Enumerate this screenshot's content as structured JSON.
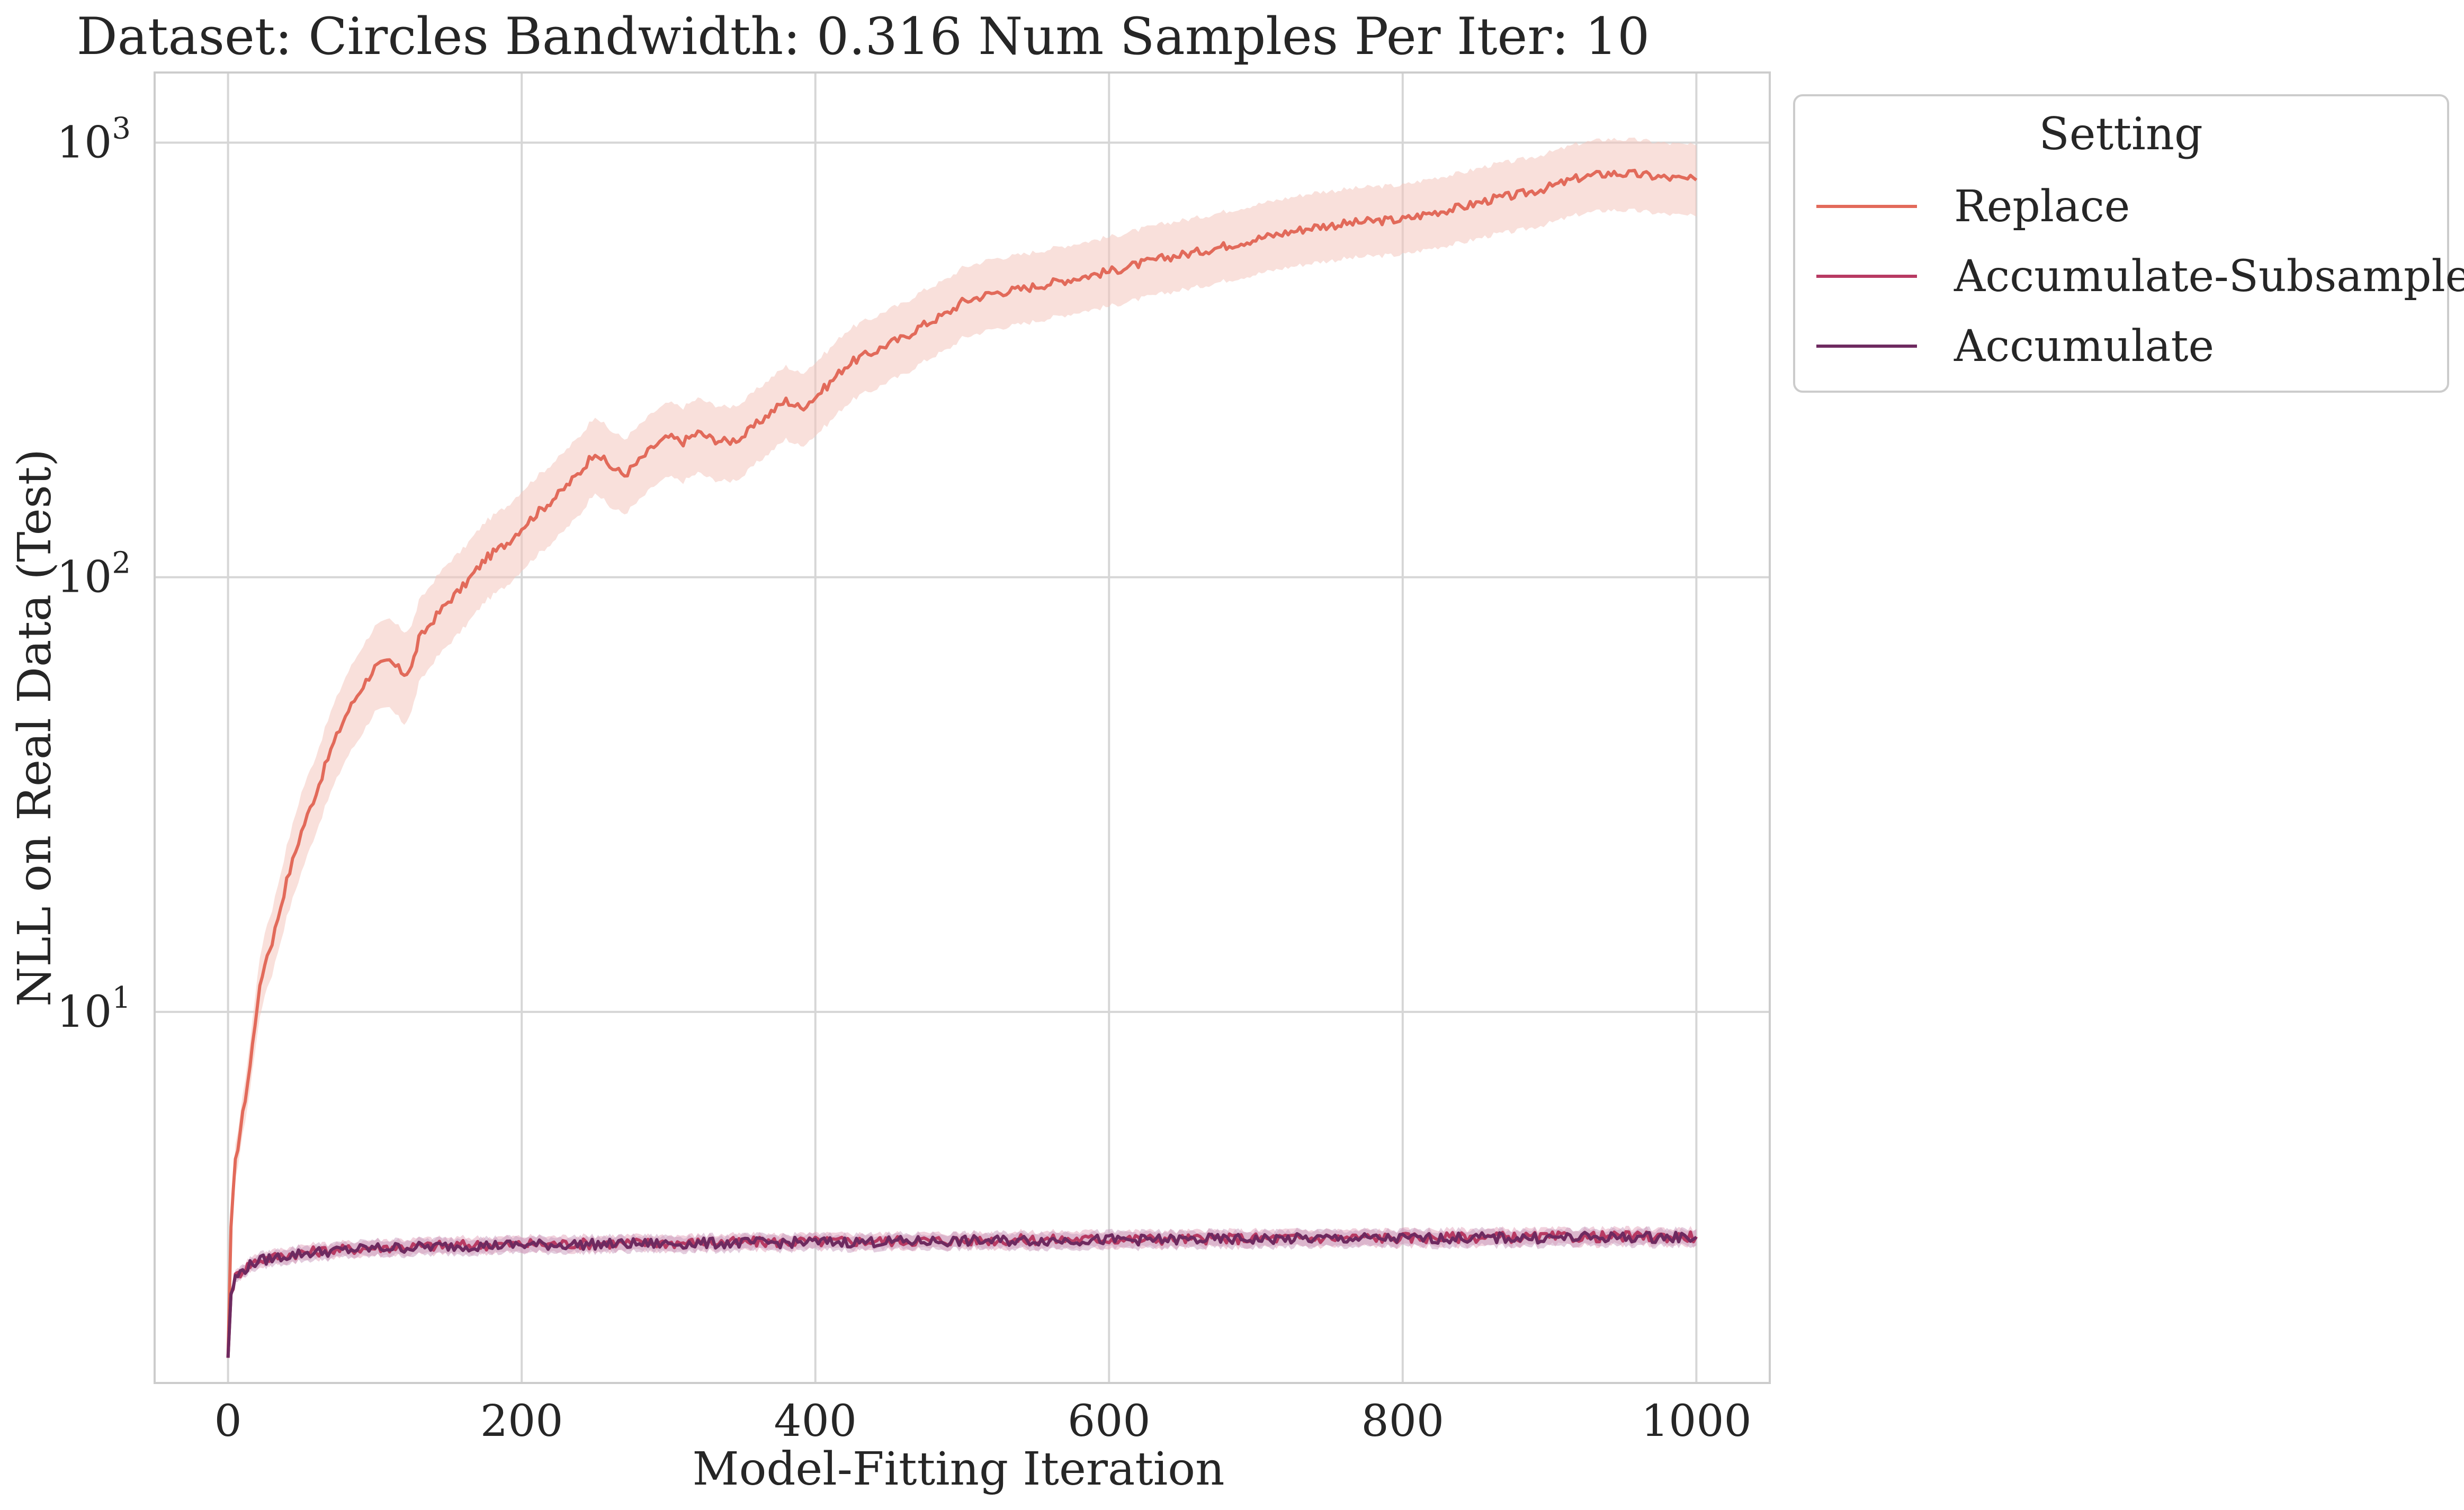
{
  "chart_data": {
    "type": "line",
    "title": "Dataset: Circles Bandwidth: 0.316 Num Samples Per Iter: 10",
    "xlabel": "Model-Fitting Iteration",
    "ylabel": "NLL on Real Data (Test)",
    "x_scale": "linear",
    "y_scale": "log",
    "xlim": [
      -50,
      1050
    ],
    "ylim": [
      1.4,
      1450
    ],
    "grid": true,
    "x_ticks": [
      {
        "value": 0,
        "label": "0"
      },
      {
        "value": 200,
        "label": "200"
      },
      {
        "value": 400,
        "label": "400"
      },
      {
        "value": 600,
        "label": "600"
      },
      {
        "value": 800,
        "label": "800"
      },
      {
        "value": 1000,
        "label": "1000"
      }
    ],
    "y_ticks": [
      {
        "value": 10,
        "base": "10",
        "exp": "1"
      },
      {
        "value": 100,
        "base": "10",
        "exp": "2"
      },
      {
        "value": 1000,
        "base": "10",
        "exp": "3"
      }
    ],
    "legend": {
      "title": "Setting",
      "placement": "outside-upper-right"
    },
    "series": [
      {
        "name": "Replace",
        "color": "#e26a5a",
        "band_color": "#f4c6bd",
        "x": [
          0,
          2,
          5,
          10,
          15,
          20,
          25,
          30,
          40,
          50,
          60,
          70,
          80,
          90,
          100,
          110,
          120,
          125,
          130,
          140,
          150,
          160,
          175,
          190,
          200,
          210,
          225,
          240,
          250,
          260,
          270,
          280,
          290,
          300,
          310,
          320,
          330,
          340,
          350,
          360,
          370,
          380,
          390,
          400,
          410,
          420,
          430,
          440,
          450,
          460,
          470,
          480,
          490,
          500,
          520,
          540,
          560,
          580,
          600,
          620,
          640,
          660,
          680,
          700,
          720,
          740,
          760,
          780,
          800,
          820,
          840,
          860,
          880,
          900,
          920,
          940,
          960,
          980,
          1000
        ],
        "mean": [
          1.6,
          3.2,
          4.5,
          5.8,
          7.5,
          10.5,
          13.0,
          14.5,
          20.0,
          26.0,
          32.0,
          40.0,
          48.0,
          55.0,
          62.0,
          64.0,
          60.0,
          62.0,
          72.0,
          80.0,
          88.0,
          95.0,
          110.0,
          120.0,
          130.0,
          140.0,
          155.0,
          175.0,
          195.0,
          180.0,
          172.0,
          185.0,
          200.0,
          210.0,
          205.0,
          215.0,
          208.0,
          205.0,
          210.0,
          225.0,
          240.0,
          255.0,
          245.0,
          260.0,
          280.0,
          305.0,
          320.0,
          330.0,
          345.0,
          355.0,
          375.0,
          390.0,
          405.0,
          430.0,
          450.0,
          460.0,
          475.0,
          490.0,
          505.0,
          525.0,
          545.0,
          560.0,
          580.0,
          600.0,
          620.0,
          640.0,
          650.0,
          660.0,
          665.0,
          690.0,
          710.0,
          740.0,
          760.0,
          790.0,
          830.0,
          850.0,
          845.0,
          830.0,
          820.0
        ],
        "lower": [
          1.6,
          3.0,
          4.1,
          5.2,
          6.6,
          9.0,
          11.0,
          12.2,
          16.5,
          21.0,
          26.0,
          32.0,
          38.0,
          43.0,
          49.0,
          50.0,
          46.0,
          49.0,
          57.0,
          64.0,
          70.0,
          76.0,
          88.0,
          96.0,
          104.0,
          112.0,
          124.0,
          140.0,
          158.0,
          145.0,
          140.0,
          150.0,
          162.0,
          170.0,
          166.0,
          174.0,
          168.0,
          166.0,
          170.0,
          183.0,
          195.0,
          208.0,
          200.0,
          212.0,
          228.0,
          248.0,
          262.0,
          270.0,
          283.0,
          292.0,
          308.0,
          322.0,
          334.0,
          355.0,
          372.0,
          382.0,
          395.0,
          408.0,
          420.0,
          436.0,
          452.0,
          465.0,
          482.0,
          498.0,
          515.0,
          530.0,
          540.0,
          548.0,
          552.0,
          572.0,
          588.0,
          612.0,
          628.0,
          652.0,
          684.0,
          700.0,
          696.0,
          684.0,
          676.0
        ],
        "upper": [
          1.6,
          3.4,
          4.9,
          6.4,
          8.5,
          12.2,
          15.3,
          17.2,
          24.0,
          32.0,
          39.0,
          49.0,
          59.0,
          68.0,
          77.0,
          80.0,
          75.0,
          77.0,
          88.0,
          98.0,
          108.0,
          116.0,
          134.0,
          146.0,
          158.0,
          170.0,
          188.0,
          212.0,
          236.0,
          218.0,
          208.0,
          223.0,
          240.0,
          252.0,
          246.0,
          258.0,
          250.0,
          246.0,
          252.0,
          270.0,
          288.0,
          306.0,
          294.0,
          312.0,
          336.0,
          366.0,
          384.0,
          396.0,
          414.0,
          426.0,
          450.0,
          468.0,
          486.0,
          515.0,
          540.0,
          552.0,
          570.0,
          588.0,
          606.0,
          630.0,
          654.0,
          672.0,
          696.0,
          720.0,
          744.0,
          768.0,
          780.0,
          792.0,
          798.0,
          828.0,
          852.0,
          888.0,
          912.0,
          948.0,
          996.0,
          1020.0,
          1014.0,
          996.0,
          984.0
        ]
      },
      {
        "name": "Accumulate-Subsample",
        "color": "#b83a63",
        "band_color": "#e3a3bc",
        "x": [
          0,
          2,
          5,
          10,
          15,
          20,
          30,
          40,
          50,
          60,
          80,
          100,
          120,
          150,
          200,
          250,
          300,
          350,
          400,
          450,
          500,
          550,
          600,
          650,
          700,
          750,
          800,
          850,
          900,
          950,
          1000
        ],
        "mean": [
          1.6,
          2.25,
          2.45,
          2.55,
          2.62,
          2.68,
          2.72,
          2.76,
          2.79,
          2.81,
          2.84,
          2.87,
          2.88,
          2.9,
          2.92,
          2.93,
          2.94,
          2.95,
          2.96,
          2.97,
          2.98,
          2.99,
          3.0,
          3.0,
          3.01,
          3.02,
          3.02,
          3.03,
          3.03,
          3.04,
          3.04
        ],
        "lower": [
          1.6,
          2.18,
          2.38,
          2.47,
          2.53,
          2.58,
          2.62,
          2.65,
          2.68,
          2.7,
          2.73,
          2.75,
          2.76,
          2.78,
          2.8,
          2.81,
          2.82,
          2.83,
          2.84,
          2.85,
          2.86,
          2.86,
          2.87,
          2.87,
          2.88,
          2.89,
          2.89,
          2.9,
          2.9,
          2.91,
          2.91
        ],
        "upper": [
          1.6,
          2.32,
          2.52,
          2.63,
          2.71,
          2.78,
          2.82,
          2.87,
          2.9,
          2.92,
          2.95,
          2.99,
          3.0,
          3.02,
          3.04,
          3.05,
          3.06,
          3.07,
          3.08,
          3.09,
          3.1,
          3.12,
          3.13,
          3.13,
          3.14,
          3.15,
          3.15,
          3.16,
          3.16,
          3.17,
          3.17
        ]
      },
      {
        "name": "Accumulate",
        "color": "#6e2a60",
        "band_color": "#c79bbd",
        "x": [
          0,
          2,
          5,
          10,
          15,
          20,
          30,
          40,
          50,
          60,
          80,
          100,
          120,
          150,
          200,
          250,
          300,
          350,
          400,
          450,
          500,
          550,
          600,
          650,
          700,
          750,
          800,
          850,
          900,
          950,
          1000
        ],
        "mean": [
          1.6,
          2.24,
          2.44,
          2.54,
          2.61,
          2.67,
          2.71,
          2.75,
          2.78,
          2.8,
          2.83,
          2.86,
          2.87,
          2.89,
          2.91,
          2.92,
          2.93,
          2.94,
          2.95,
          2.96,
          2.97,
          2.98,
          2.99,
          2.99,
          3.0,
          3.01,
          3.01,
          3.02,
          3.02,
          3.03,
          3.03
        ],
        "lower": [
          1.6,
          2.17,
          2.37,
          2.46,
          2.52,
          2.57,
          2.61,
          2.64,
          2.67,
          2.69,
          2.72,
          2.74,
          2.75,
          2.77,
          2.79,
          2.8,
          2.81,
          2.82,
          2.83,
          2.84,
          2.85,
          2.85,
          2.86,
          2.86,
          2.87,
          2.88,
          2.88,
          2.89,
          2.89,
          2.9,
          2.9
        ],
        "upper": [
          1.6,
          2.31,
          2.51,
          2.62,
          2.7,
          2.77,
          2.81,
          2.86,
          2.89,
          2.91,
          2.94,
          2.98,
          2.99,
          3.01,
          3.03,
          3.04,
          3.05,
          3.06,
          3.07,
          3.08,
          3.09,
          3.11,
          3.12,
          3.12,
          3.13,
          3.14,
          3.14,
          3.15,
          3.15,
          3.16,
          3.16
        ]
      }
    ]
  }
}
